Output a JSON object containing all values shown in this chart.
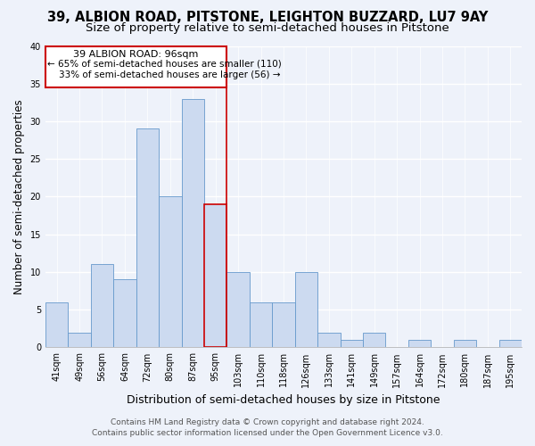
{
  "title": "39, ALBION ROAD, PITSTONE, LEIGHTON BUZZARD, LU7 9AY",
  "subtitle": "Size of property relative to semi-detached houses in Pitstone",
  "xlabel": "Distribution of semi-detached houses by size in Pitstone",
  "ylabel": "Number of semi-detached properties",
  "bar_labels": [
    "41sqm",
    "49sqm",
    "56sqm",
    "64sqm",
    "72sqm",
    "80sqm",
    "87sqm",
    "95sqm",
    "103sqm",
    "110sqm",
    "118sqm",
    "126sqm",
    "133sqm",
    "141sqm",
    "149sqm",
    "157sqm",
    "164sqm",
    "172sqm",
    "180sqm",
    "187sqm",
    "195sqm"
  ],
  "bar_values": [
    6,
    2,
    11,
    9,
    29,
    20,
    33,
    19,
    10,
    6,
    6,
    10,
    2,
    1,
    2,
    0,
    1,
    0,
    1,
    0,
    1
  ],
  "bar_color": "#ccdaf0",
  "bar_edge_color": "#6699cc",
  "highlight_bar_index": 7,
  "highlight_bar_edge_color": "#cc0000",
  "vline_color": "#cc0000",
  "ylim": [
    0,
    40
  ],
  "yticks": [
    0,
    5,
    10,
    15,
    20,
    25,
    30,
    35,
    40
  ],
  "annotation_title": "39 ALBION ROAD: 96sqm",
  "annotation_line1": "← 65% of semi-detached houses are smaller (110)",
  "annotation_line2": "33% of semi-detached houses are larger (56) →",
  "annotation_box_color": "#ffffff",
  "annotation_box_edge_color": "#cc0000",
  "footer_line1": "Contains HM Land Registry data © Crown copyright and database right 2024.",
  "footer_line2": "Contains public sector information licensed under the Open Government Licence v3.0.",
  "bg_color": "#eef2fa",
  "plot_bg_color": "#eef2fa",
  "grid_color": "#ffffff",
  "title_fontsize": 10.5,
  "subtitle_fontsize": 9.5,
  "xlabel_fontsize": 9,
  "ylabel_fontsize": 8.5,
  "tick_fontsize": 7,
  "footer_fontsize": 6.5,
  "annotation_fontsize": 8
}
